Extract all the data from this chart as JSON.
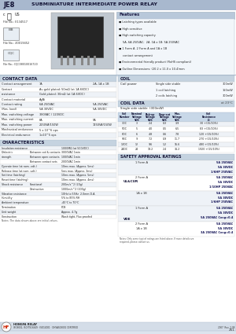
{
  "title_part": "JE8",
  "title_desc": "SUBMINIATURE INTERMEDIATE POWER RELAY",
  "header_bg": "#a8b8ce",
  "section_header_bg": "#c5d3e0",
  "page_bg": "#dce4ee",
  "white": "#ffffff",
  "file_nos": [
    "File No.: E134517",
    "File No.: 40019452",
    "File No.: CQC08010016720"
  ],
  "features": [
    "Latching types available",
    "High sensitive",
    "High switching capacity",
    "  5A, 6A 250VAC;  2A, 1A x 1B: 5A 250VAC",
    "1 Form A, 2 Form A and 1A x 1B",
    "  contact arrangement",
    "Environmental friendly product (RoHS compliant)",
    "Outline Dimensions: (20.2 x 11.0 x 10.4)mm"
  ],
  "contact_data_rows": [
    [
      "Contact arrangement",
      "1A",
      "2A, 1A x 1B"
    ],
    [
      "Contact",
      "Au gold plated: 50mΩ (at 1A 6VDC)",
      ""
    ],
    [
      "resistance",
      "Gold plated: 30mΩ (at 1A 6VDC)",
      ""
    ],
    [
      "Contact material",
      "AgNi",
      ""
    ],
    [
      "Contact rating",
      "6A 250VAC",
      "5A 250VAC"
    ],
    [
      "(Res. load)",
      "5A 30VDC",
      "5A 30VDC"
    ],
    [
      "Max. switching voltage",
      "380VAC / 120VDC",
      ""
    ],
    [
      "Max. switching current",
      "6A",
      "5A"
    ],
    [
      "Max. switching power",
      "2150VA/150W",
      "1250VA/150W"
    ],
    [
      "Mechanical endurance",
      "5 x 10^6 ops",
      ""
    ],
    [
      "Electrical endurance",
      "1x10^5 ops",
      ""
    ]
  ],
  "coil_power": [
    [
      "Single side stable",
      "300mW"
    ],
    [
      "1 coil latching",
      "150mW"
    ],
    [
      "2 coils latching",
      "300mW"
    ]
  ],
  "coil_table_rows": [
    [
      "3DC",
      "3",
      "2.4",
      "0.3",
      "3.9",
      "30 +(15/10%)"
    ],
    [
      "5DC",
      "5",
      "4.0",
      "0.5",
      "6.5",
      "83 +(15/10%)"
    ],
    [
      "6DC",
      "6",
      "4.8",
      "0.6",
      "7.8",
      "120 +(15/10%)"
    ],
    [
      "9DC",
      "9",
      "7.2",
      "0.9",
      "11.7",
      "270 +(15/10%)"
    ],
    [
      "12DC",
      "12",
      "9.6",
      "1.2",
      "15.6",
      "480 +(15/10%)"
    ],
    [
      "24DC",
      "24",
      "19.2",
      "2.4",
      "31.2",
      "1920 +(15/10%)"
    ]
  ],
  "chars_rows": [
    [
      "Insulation resistance",
      "",
      "1000MΩ (at 500VDC)"
    ],
    [
      "Dielectric",
      "Between coil & contacts",
      "3000VAC 1min"
    ],
    [
      "strength",
      "Between open contacts",
      "1000VAC 1min"
    ],
    [
      "",
      "Between contact sets",
      "2000VAC 1min"
    ],
    [
      "Operate time (at nom. volt.)",
      "",
      "10ms max. (Approx. 5ms)"
    ],
    [
      "Release time (at nom. volt.)",
      "",
      "5ms max. (Approx. 3ms)"
    ],
    [
      "Set time (latching)",
      "",
      "10ms max. (Approx. 5ms)"
    ],
    [
      "Reset time (latching)",
      "",
      "10ms max. (Approx. 4ms)"
    ],
    [
      "Shock resistance",
      "Functional",
      "200m/s^2 (20g)"
    ],
    [
      "",
      "Destructive",
      "1000m/s^2 (100g)"
    ],
    [
      "Vibration resistance",
      "",
      "10Hz to 55Hz  2.0mm D.A."
    ],
    [
      "Humidity",
      "",
      "5% to 85% RH"
    ],
    [
      "Ambient temperature",
      "",
      "-40°C to 70°C"
    ],
    [
      "Termination",
      "",
      "PCB"
    ],
    [
      "Unit weight",
      "",
      "Approx. 4.7g"
    ],
    [
      "Construction",
      "",
      "Wash tight, Flux proofed"
    ]
  ],
  "safety_sections": [
    {
      "name": "UL&CUR",
      "rows": [
        [
          "1 Form A",
          [
            "5A 250VAC",
            "5A 30VDC",
            "1/6HP 250VAC"
          ]
        ],
        [
          "2 Form A",
          [
            "5A 250VAC",
            "5A 30VDC",
            "1/10HP 250VAC"
          ]
        ],
        [
          "1A x 1B",
          [
            "5A 250VAC",
            "5A 30VDC",
            "1/6HP 250VAC"
          ]
        ]
      ]
    },
    {
      "name": "VDE",
      "rows": [
        [
          "1 Form A",
          [
            "5A 250VAC",
            "5A 30VDC",
            "5A 250VAC Cosφ=0.4"
          ]
        ],
        [
          "2 Form A\n1A x 1B",
          [
            "5A 250VAC",
            "5A 30VDC",
            "3A 250VAC Cosφ=0.4"
          ]
        ]
      ]
    }
  ],
  "footer_cert": "ISO9001, ISO/TS16949 · ISO14001 · OHSAS18001 CERTIFIED",
  "footer_year": "2007  Rev. 2-08",
  "page_num": "251"
}
